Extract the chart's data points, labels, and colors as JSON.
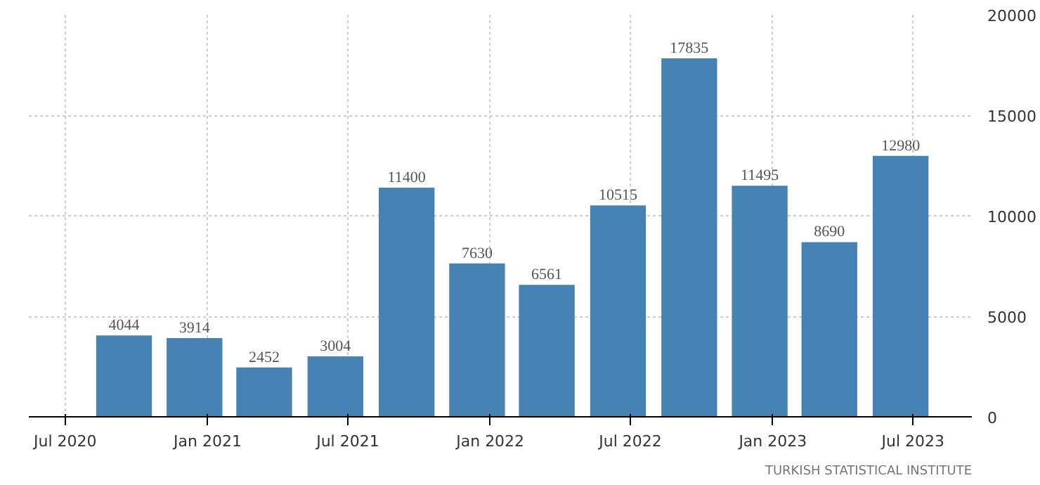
{
  "chart_data": {
    "type": "bar",
    "x": [
      "2020-09-15",
      "2020-12-15",
      "2021-03-15",
      "2021-06-15",
      "2021-09-15",
      "2021-12-15",
      "2022-03-15",
      "2022-06-15",
      "2022-09-15",
      "2022-12-15",
      "2023-03-15",
      "2023-06-15"
    ],
    "values": [
      4044,
      3914,
      2452,
      3004,
      11400,
      7630,
      6561,
      10515,
      17835,
      11495,
      8690,
      12980
    ],
    "color": "#4682b4",
    "data_labels": true,
    "xlim": [
      "2020-05-15",
      "2023-09-15"
    ],
    "xticks": [
      {
        "value": "2020-07-01",
        "label": "Jul 2020"
      },
      {
        "value": "2021-01-01",
        "label": "Jan 2021"
      },
      {
        "value": "2021-07-01",
        "label": "Jul 2021"
      },
      {
        "value": "2022-01-01",
        "label": "Jan 2022"
      },
      {
        "value": "2022-07-01",
        "label": "Jul 2022"
      },
      {
        "value": "2023-01-01",
        "label": "Jan 2023"
      },
      {
        "value": "2023-07-01",
        "label": "Jul 2023"
      }
    ],
    "ylim": [
      0,
      20000
    ],
    "yticks": [
      0,
      5000,
      10000,
      15000,
      20000
    ],
    "grid": true,
    "annotations": [
      "TURKISH STATISTICAL INSTITUTE"
    ]
  }
}
